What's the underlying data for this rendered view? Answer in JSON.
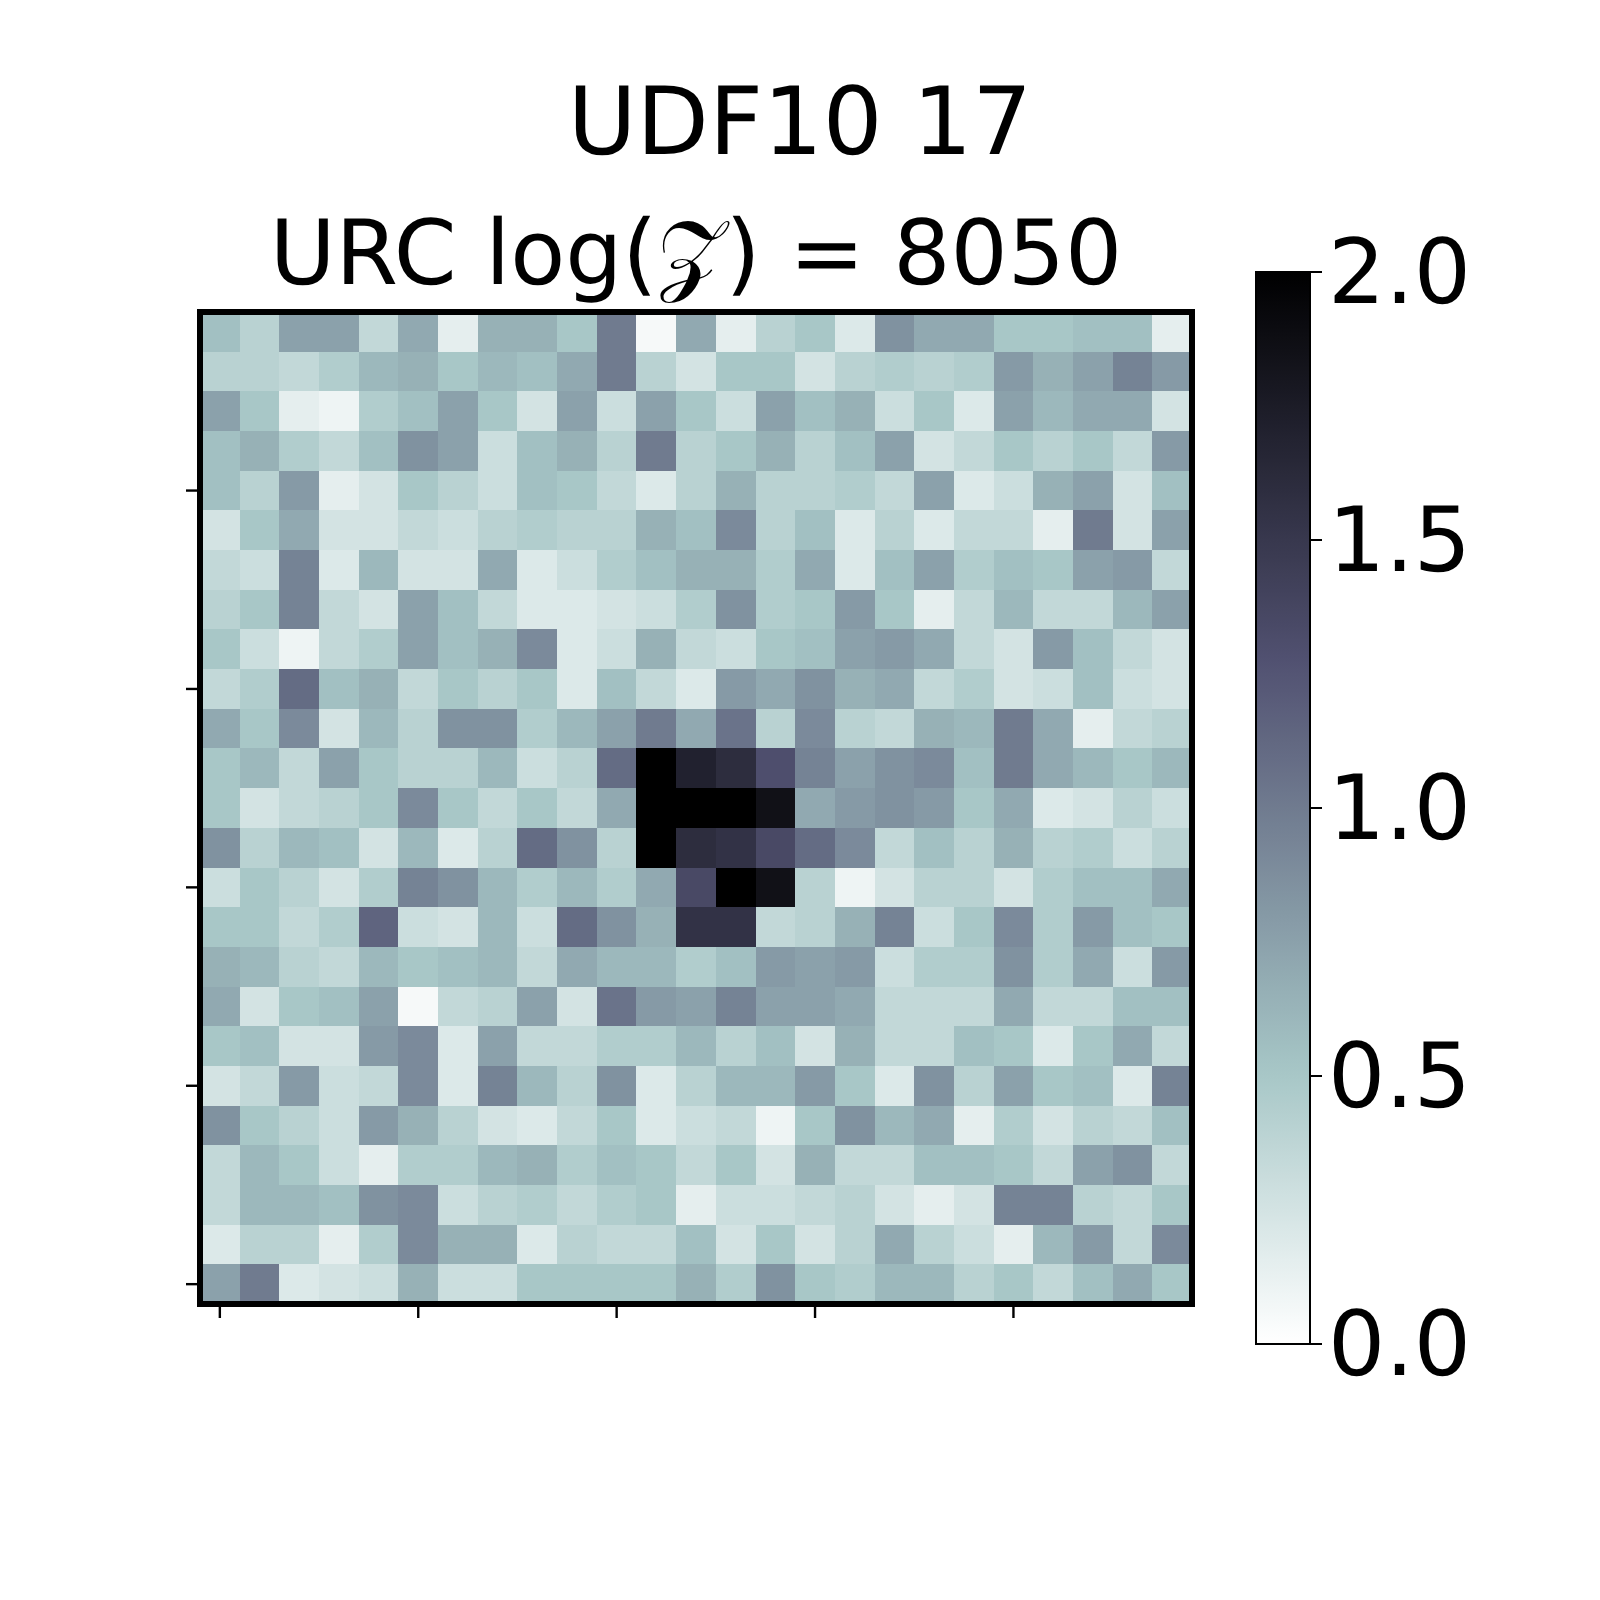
{
  "chart_data": {
    "type": "heatmap",
    "title": "UDF10 17",
    "subtitle": "URC log(𝒵) = 8050",
    "categories": [
      null,
      null,
      null,
      null,
      null,
      null,
      null,
      null,
      null,
      null,
      null,
      null,
      null,
      null,
      null,
      null,
      null,
      null,
      null,
      null,
      null,
      null,
      null,
      null,
      null
    ],
    "y_categories": [
      null,
      null,
      null,
      null,
      null,
      null,
      null,
      null,
      null,
      null,
      null,
      null,
      null,
      null,
      null,
      null,
      null,
      null,
      null,
      null,
      null,
      null,
      null,
      null,
      null
    ],
    "clim": [
      0,
      2
    ],
    "cticks": [
      {
        "value": 0,
        "label": "0.0"
      },
      {
        "value": 0.5,
        "label": "0.5"
      },
      {
        "value": 1,
        "label": "1.0"
      },
      {
        "value": 1.5,
        "label": "1.5"
      },
      {
        "value": 2,
        "label": "2.0"
      }
    ],
    "cells": [
      [
        0.55,
        0.4,
        0.75,
        0.75,
        0.35,
        0.7,
        0.15,
        0.65,
        0.65,
        0.5,
        1.0,
        0.05,
        0.7,
        0.15,
        0.4,
        0.5,
        0.2,
        0.85,
        0.7,
        0.7,
        0.5,
        0.5,
        0.55,
        0.55,
        0.15
      ],
      [
        0.4,
        0.4,
        0.35,
        0.45,
        0.6,
        0.65,
        0.5,
        0.6,
        0.55,
        0.7,
        1.0,
        0.4,
        0.25,
        0.5,
        0.5,
        0.25,
        0.4,
        0.45,
        0.4,
        0.45,
        0.8,
        0.65,
        0.75,
        0.95,
        0.8
      ],
      [
        0.75,
        0.5,
        0.15,
        0.1,
        0.45,
        0.55,
        0.75,
        0.5,
        0.25,
        0.75,
        0.3,
        0.75,
        0.5,
        0.3,
        0.75,
        0.55,
        0.65,
        0.3,
        0.5,
        0.2,
        0.75,
        0.6,
        0.7,
        0.7,
        0.25
      ],
      [
        0.55,
        0.65,
        0.45,
        0.35,
        0.55,
        0.85,
        0.75,
        0.3,
        0.55,
        0.65,
        0.4,
        1.0,
        0.4,
        0.5,
        0.65,
        0.4,
        0.55,
        0.75,
        0.25,
        0.35,
        0.5,
        0.4,
        0.5,
        0.35,
        0.8
      ],
      [
        0.55,
        0.4,
        0.8,
        0.15,
        0.25,
        0.5,
        0.4,
        0.3,
        0.55,
        0.5,
        0.35,
        0.2,
        0.4,
        0.65,
        0.4,
        0.4,
        0.45,
        0.35,
        0.75,
        0.2,
        0.3,
        0.65,
        0.75,
        0.25,
        0.55
      ],
      [
        0.25,
        0.5,
        0.7,
        0.25,
        0.25,
        0.35,
        0.3,
        0.4,
        0.45,
        0.4,
        0.4,
        0.65,
        0.55,
        0.9,
        0.4,
        0.55,
        0.2,
        0.4,
        0.2,
        0.35,
        0.35,
        0.15,
        1.0,
        0.25,
        0.75
      ],
      [
        0.35,
        0.3,
        0.95,
        0.2,
        0.6,
        0.25,
        0.25,
        0.7,
        0.2,
        0.3,
        0.45,
        0.55,
        0.65,
        0.65,
        0.45,
        0.7,
        0.2,
        0.55,
        0.75,
        0.45,
        0.55,
        0.5,
        0.75,
        0.8,
        0.35
      ],
      [
        0.4,
        0.5,
        0.95,
        0.35,
        0.25,
        0.75,
        0.55,
        0.35,
        0.2,
        0.2,
        0.25,
        0.3,
        0.45,
        0.85,
        0.45,
        0.5,
        0.8,
        0.5,
        0.15,
        0.35,
        0.6,
        0.35,
        0.35,
        0.6,
        0.75
      ],
      [
        0.5,
        0.3,
        0.1,
        0.35,
        0.45,
        0.75,
        0.55,
        0.65,
        0.9,
        0.2,
        0.3,
        0.65,
        0.35,
        0.3,
        0.5,
        0.55,
        0.75,
        0.8,
        0.7,
        0.35,
        0.25,
        0.8,
        0.55,
        0.35,
        0.25
      ],
      [
        0.35,
        0.45,
        1.1,
        0.55,
        0.65,
        0.35,
        0.5,
        0.4,
        0.5,
        0.2,
        0.55,
        0.35,
        0.2,
        0.8,
        0.7,
        0.85,
        0.65,
        0.7,
        0.35,
        0.45,
        0.25,
        0.3,
        0.55,
        0.3,
        0.25
      ],
      [
        0.7,
        0.5,
        0.9,
        0.25,
        0.6,
        0.4,
        0.85,
        0.85,
        0.45,
        0.6,
        0.75,
        1.0,
        0.7,
        1.05,
        0.4,
        0.9,
        0.4,
        0.35,
        0.65,
        0.6,
        1.0,
        0.7,
        0.15,
        0.35,
        0.4
      ],
      [
        0.5,
        0.6,
        0.35,
        0.75,
        0.5,
        0.4,
        0.4,
        0.6,
        0.3,
        0.4,
        1.1,
        2.0,
        1.7,
        1.6,
        1.3,
        0.95,
        0.75,
        0.85,
        0.9,
        0.55,
        1.0,
        0.7,
        0.6,
        0.5,
        0.6
      ],
      [
        0.5,
        0.25,
        0.35,
        0.4,
        0.5,
        0.9,
        0.5,
        0.35,
        0.5,
        0.35,
        0.7,
        2.0,
        2.0,
        2.0,
        1.85,
        0.7,
        0.8,
        0.85,
        0.8,
        0.5,
        0.7,
        0.2,
        0.25,
        0.4,
        0.3
      ],
      [
        0.85,
        0.4,
        0.6,
        0.55,
        0.25,
        0.6,
        0.2,
        0.4,
        1.1,
        0.85,
        0.4,
        2.0,
        1.6,
        1.55,
        1.35,
        1.1,
        0.9,
        0.35,
        0.55,
        0.4,
        0.65,
        0.4,
        0.45,
        0.3,
        0.4
      ],
      [
        0.3,
        0.5,
        0.4,
        0.25,
        0.45,
        0.95,
        0.85,
        0.6,
        0.45,
        0.6,
        0.45,
        0.7,
        1.35,
        2.0,
        1.85,
        0.4,
        0.1,
        0.25,
        0.4,
        0.4,
        0.25,
        0.45,
        0.55,
        0.55,
        0.7
      ],
      [
        0.5,
        0.5,
        0.35,
        0.45,
        1.15,
        0.3,
        0.25,
        0.6,
        0.3,
        1.1,
        0.85,
        0.65,
        1.55,
        1.55,
        0.35,
        0.4,
        0.65,
        0.95,
        0.3,
        0.5,
        0.9,
        0.45,
        0.8,
        0.55,
        0.5
      ],
      [
        0.65,
        0.6,
        0.4,
        0.35,
        0.6,
        0.5,
        0.55,
        0.6,
        0.35,
        0.7,
        0.6,
        0.6,
        0.45,
        0.55,
        0.8,
        0.75,
        0.8,
        0.3,
        0.45,
        0.45,
        0.85,
        0.45,
        0.7,
        0.3,
        0.8
      ],
      [
        0.7,
        0.25,
        0.5,
        0.55,
        0.75,
        0.05,
        0.35,
        0.4,
        0.75,
        0.25,
        1.05,
        0.8,
        0.75,
        0.95,
        0.75,
        0.75,
        0.7,
        0.35,
        0.35,
        0.35,
        0.7,
        0.35,
        0.35,
        0.55,
        0.55
      ],
      [
        0.5,
        0.55,
        0.25,
        0.25,
        0.8,
        0.9,
        0.2,
        0.75,
        0.35,
        0.35,
        0.45,
        0.45,
        0.6,
        0.4,
        0.55,
        0.25,
        0.65,
        0.35,
        0.35,
        0.55,
        0.5,
        0.2,
        0.5,
        0.7,
        0.35
      ],
      [
        0.25,
        0.35,
        0.8,
        0.3,
        0.35,
        0.9,
        0.2,
        0.95,
        0.6,
        0.4,
        0.85,
        0.2,
        0.4,
        0.6,
        0.6,
        0.8,
        0.5,
        0.2,
        0.85,
        0.4,
        0.75,
        0.5,
        0.55,
        0.2,
        0.95
      ],
      [
        0.85,
        0.5,
        0.4,
        0.3,
        0.8,
        0.65,
        0.4,
        0.25,
        0.2,
        0.35,
        0.5,
        0.2,
        0.3,
        0.35,
        0.1,
        0.5,
        0.85,
        0.6,
        0.7,
        0.15,
        0.45,
        0.25,
        0.4,
        0.35,
        0.55
      ],
      [
        0.35,
        0.6,
        0.5,
        0.3,
        0.15,
        0.45,
        0.45,
        0.6,
        0.65,
        0.45,
        0.55,
        0.5,
        0.35,
        0.5,
        0.25,
        0.65,
        0.35,
        0.35,
        0.55,
        0.55,
        0.5,
        0.35,
        0.75,
        0.85,
        0.35
      ],
      [
        0.35,
        0.6,
        0.6,
        0.55,
        0.85,
        0.9,
        0.3,
        0.4,
        0.45,
        0.35,
        0.45,
        0.5,
        0.15,
        0.3,
        0.3,
        0.35,
        0.4,
        0.25,
        0.15,
        0.25,
        0.95,
        0.95,
        0.4,
        0.35,
        0.5
      ],
      [
        0.2,
        0.4,
        0.4,
        0.15,
        0.45,
        0.9,
        0.65,
        0.65,
        0.2,
        0.4,
        0.35,
        0.35,
        0.55,
        0.25,
        0.5,
        0.25,
        0.4,
        0.7,
        0.4,
        0.3,
        0.15,
        0.6,
        0.8,
        0.35,
        0.9
      ],
      [
        0.75,
        1.0,
        0.2,
        0.25,
        0.3,
        0.65,
        0.3,
        0.3,
        0.5,
        0.5,
        0.5,
        0.5,
        0.65,
        0.45,
        0.85,
        0.5,
        0.45,
        0.6,
        0.6,
        0.4,
        0.5,
        0.35,
        0.55,
        0.7,
        0.5
      ]
    ]
  }
}
